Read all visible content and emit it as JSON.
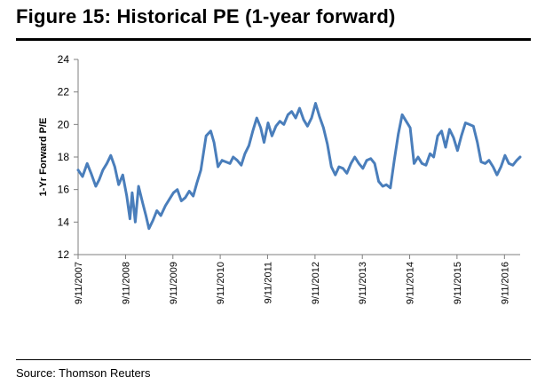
{
  "figure": {
    "title": "Figure 15: Historical PE (1-year forward)",
    "source": "Source: Thomson Reuters"
  },
  "colors": {
    "series": "#4a7ebb",
    "axis": "#7f7f7f"
  },
  "chart_data": {
    "type": "line",
    "title": "Figure 15: Historical PE (1-year forward)",
    "xlabel": "",
    "ylabel": "1-Yr Forward P/E",
    "ylim": [
      12,
      24
    ],
    "yticks": [
      12,
      14,
      16,
      18,
      20,
      22,
      24
    ],
    "xlim": [
      "2007-09-11",
      "2017-01-10"
    ],
    "xticks": [
      "9/11/2007",
      "9/11/2008",
      "9/11/2009",
      "9/11/2010",
      "9/11/2011",
      "9/11/2012",
      "9/11/2013",
      "9/11/2014",
      "9/11/2015",
      "9/11/2016"
    ],
    "grid": false,
    "legend": "none",
    "series": [
      {
        "x": [
          "2007-09-11",
          "2007-10-15",
          "2007-11-20",
          "2007-12-20",
          "2008-01-25",
          "2008-02-20",
          "2008-03-20",
          "2008-04-20",
          "2008-05-20",
          "2008-06-20",
          "2008-07-20",
          "2008-08-20",
          "2008-09-20",
          "2008-10-15",
          "2008-11-01",
          "2008-11-25",
          "2008-12-20",
          "2009-01-20",
          "2009-02-15",
          "2009-03-10",
          "2009-04-10",
          "2009-05-10",
          "2009-06-10",
          "2009-07-15",
          "2009-08-15",
          "2009-09-15",
          "2009-10-15",
          "2009-11-15",
          "2009-12-15",
          "2010-01-15",
          "2010-02-15",
          "2010-03-15",
          "2010-04-15",
          "2010-05-25",
          "2010-06-30",
          "2010-07-25",
          "2010-08-25",
          "2010-09-25",
          "2010-10-25",
          "2010-11-25",
          "2010-12-20",
          "2011-01-20",
          "2011-02-20",
          "2011-03-20",
          "2011-04-20",
          "2011-05-20",
          "2011-06-20",
          "2011-07-20",
          "2011-08-15",
          "2011-09-15",
          "2011-10-15",
          "2011-11-15",
          "2011-12-15",
          "2012-01-15",
          "2012-02-15",
          "2012-03-15",
          "2012-04-15",
          "2012-05-15",
          "2012-06-15",
          "2012-07-15",
          "2012-08-15",
          "2012-09-15",
          "2012-10-15",
          "2012-11-15",
          "2012-12-15",
          "2013-01-15",
          "2013-02-15",
          "2013-03-15",
          "2013-04-15",
          "2013-05-15",
          "2013-06-15",
          "2013-07-15",
          "2013-08-15",
          "2013-09-15",
          "2013-10-15",
          "2013-11-15",
          "2013-12-15",
          "2014-01-15",
          "2014-02-15",
          "2014-03-15",
          "2014-04-15",
          "2014-05-15",
          "2014-06-15",
          "2014-07-15",
          "2014-08-15",
          "2014-09-15",
          "2014-10-15",
          "2014-11-15",
          "2014-12-15",
          "2015-01-15",
          "2015-02-15",
          "2015-03-15",
          "2015-04-15",
          "2015-05-15",
          "2015-06-15",
          "2015-07-15",
          "2015-08-15",
          "2015-09-15",
          "2015-10-15",
          "2015-11-15",
          "2015-12-15",
          "2016-01-15",
          "2016-02-15",
          "2016-03-15",
          "2016-04-15",
          "2016-05-15",
          "2016-06-15",
          "2016-07-15",
          "2016-08-15",
          "2016-09-15",
          "2016-10-15",
          "2016-11-15",
          "2016-12-15",
          "2017-01-10"
        ],
        "y": [
          17.2,
          16.8,
          17.6,
          17.0,
          16.2,
          16.6,
          17.2,
          17.6,
          18.1,
          17.4,
          16.3,
          16.9,
          15.6,
          14.2,
          15.8,
          14.0,
          16.2,
          15.2,
          14.4,
          13.6,
          14.1,
          14.7,
          14.4,
          15.0,
          15.4,
          15.8,
          16.0,
          15.3,
          15.5,
          15.9,
          15.6,
          16.4,
          17.2,
          19.3,
          19.6,
          18.9,
          17.4,
          17.8,
          17.7,
          17.6,
          18.0,
          17.8,
          17.5,
          18.2,
          18.7,
          19.6,
          20.4,
          19.8,
          18.9,
          20.1,
          19.3,
          19.9,
          20.2,
          20.0,
          20.6,
          20.8,
          20.4,
          21.0,
          20.3,
          19.9,
          20.4,
          21.3,
          20.5,
          19.8,
          18.8,
          17.4,
          16.9,
          17.4,
          17.3,
          17.0,
          17.6,
          18.0,
          17.6,
          17.3,
          17.8,
          17.9,
          17.6,
          16.5,
          16.2,
          16.3,
          16.1,
          17.8,
          19.4,
          20.6,
          20.2,
          19.8,
          17.6,
          18.0,
          17.6,
          17.5,
          18.2,
          18.0,
          19.3,
          19.6,
          18.6,
          19.7,
          19.2,
          18.4,
          19.3,
          20.1,
          20.0,
          19.9,
          18.9,
          17.7,
          17.6,
          17.8,
          17.4,
          16.9,
          17.4,
          18.1,
          17.6,
          17.5,
          17.8,
          18.0
        ]
      }
    ]
  }
}
